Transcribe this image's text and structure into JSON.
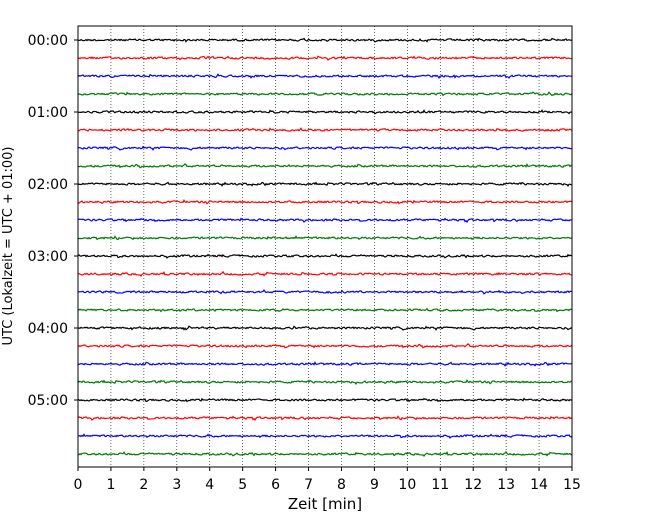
{
  "chart_data": {
    "type": "line",
    "title": "",
    "xlabel": "Zeit  [min]",
    "ylabel": "UTC (Lokalzeit = UTC + 01:00)",
    "xlim": [
      0,
      15
    ],
    "x_ticks": [
      "0",
      "1",
      "2",
      "3",
      "4",
      "5",
      "6",
      "7",
      "8",
      "9",
      "10",
      "11",
      "12",
      "13",
      "14",
      "15"
    ],
    "y_ticks": [
      "00:00",
      "01:00",
      "02:00",
      "03:00",
      "04:00",
      "05:00"
    ],
    "grid": "vertical dotted at each minute",
    "trace_interval_minutes": 15,
    "trace_count": 24,
    "trace_start_times": [
      "00:00",
      "00:15",
      "00:30",
      "00:45",
      "01:00",
      "01:15",
      "01:30",
      "01:45",
      "02:00",
      "02:15",
      "02:30",
      "02:45",
      "03:00",
      "03:15",
      "03:30",
      "03:45",
      "04:00",
      "04:15",
      "04:30",
      "04:45",
      "05:00",
      "05:15",
      "05:30",
      "05:45"
    ],
    "trace_colors": [
      "#000000",
      "#ff0000",
      "#0000ff",
      "#007a00"
    ]
  }
}
